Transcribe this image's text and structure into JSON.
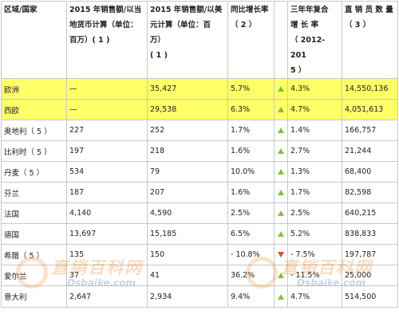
{
  "headers": [
    "区域/国家",
    "2015 年销售额/以当\n地货币计算（单位：\n百万）( 1 )",
    "2015 年销售额/以美\n元计算（单位：百万）\n( 1 )",
    "同比增长率\n（ 2 ）",
    "",
    "三年年复合\n增 长 率\n（ 2012-201\n5 ）",
    "直 销 员 数 量\n（ 3 ）"
  ],
  "rows": [
    {
      "name": "欧洲",
      "local": "—",
      "usd": "35,427",
      "yoy": "5.7%",
      "trend": "up",
      "cagr": "4.3%",
      "sellers": "14,550,136",
      "highlight": true
    },
    {
      "name": "西欧",
      "local": "—",
      "usd": "29,538",
      "yoy": "6.3%",
      "trend": "up",
      "cagr": "4.7%",
      "sellers": "4,051,613",
      "highlight": true
    },
    {
      "name": "奥地利（ 5 ）",
      "local": "227",
      "usd": "252",
      "yoy": "1.7%",
      "trend": "up",
      "cagr": "1.4%",
      "sellers": "166,757",
      "highlight": false
    },
    {
      "name": "比利时（ 5 ）",
      "local": "197",
      "usd": "218",
      "yoy": "1.6%",
      "trend": "up",
      "cagr": "2.7%",
      "sellers": "21,244",
      "highlight": false
    },
    {
      "name": "丹麦（ 5 ）",
      "local": "534",
      "usd": "79",
      "yoy": "10.0%",
      "trend": "up",
      "cagr": "1.3%",
      "sellers": "68,400",
      "highlight": false
    },
    {
      "name": "芬兰",
      "local": "187",
      "usd": "207",
      "yoy": "1.6%",
      "trend": "up",
      "cagr": "1.7%",
      "sellers": "82,598",
      "highlight": false
    },
    {
      "name": "法国",
      "local": "4,140",
      "usd": "4,590",
      "yoy": "2.5%",
      "trend": "up",
      "cagr": "2.5%",
      "sellers": "640,215",
      "highlight": false
    },
    {
      "name": "德国",
      "local": "13,697",
      "usd": "15,185",
      "yoy": "6.5%",
      "trend": "up",
      "cagr": "5.2%",
      "sellers": "838,833",
      "highlight": false
    },
    {
      "name": "希腊（ 5 ）",
      "local": "135",
      "usd": "150",
      "yoy": "- 10.8%",
      "trend": "down",
      "cagr": "- 7.5%",
      "sellers": "197,787",
      "highlight": false
    },
    {
      "name": "爱尔兰",
      "local": "37",
      "usd": "41",
      "yoy": "36.2%",
      "trend": "up",
      "cagr": "- 11.5%",
      "sellers": "25,000",
      "highlight": false
    },
    {
      "name": "意大利",
      "local": "2,647",
      "usd": "2,934",
      "yoy": "9.4%",
      "trend": "up",
      "cagr": "4.7%",
      "sellers": "514,500",
      "highlight": false
    }
  ],
  "watermark": {
    "cn": "直销百科网",
    "url": "Dsbaike.com"
  },
  "colors": {
    "highlight": "#ffff66",
    "up": "#7dc142",
    "down": "#e04b2b",
    "border": "#c8c8c8"
  },
  "icons": {
    "up": "triangle-up-icon",
    "down": "triangle-down-icon"
  }
}
